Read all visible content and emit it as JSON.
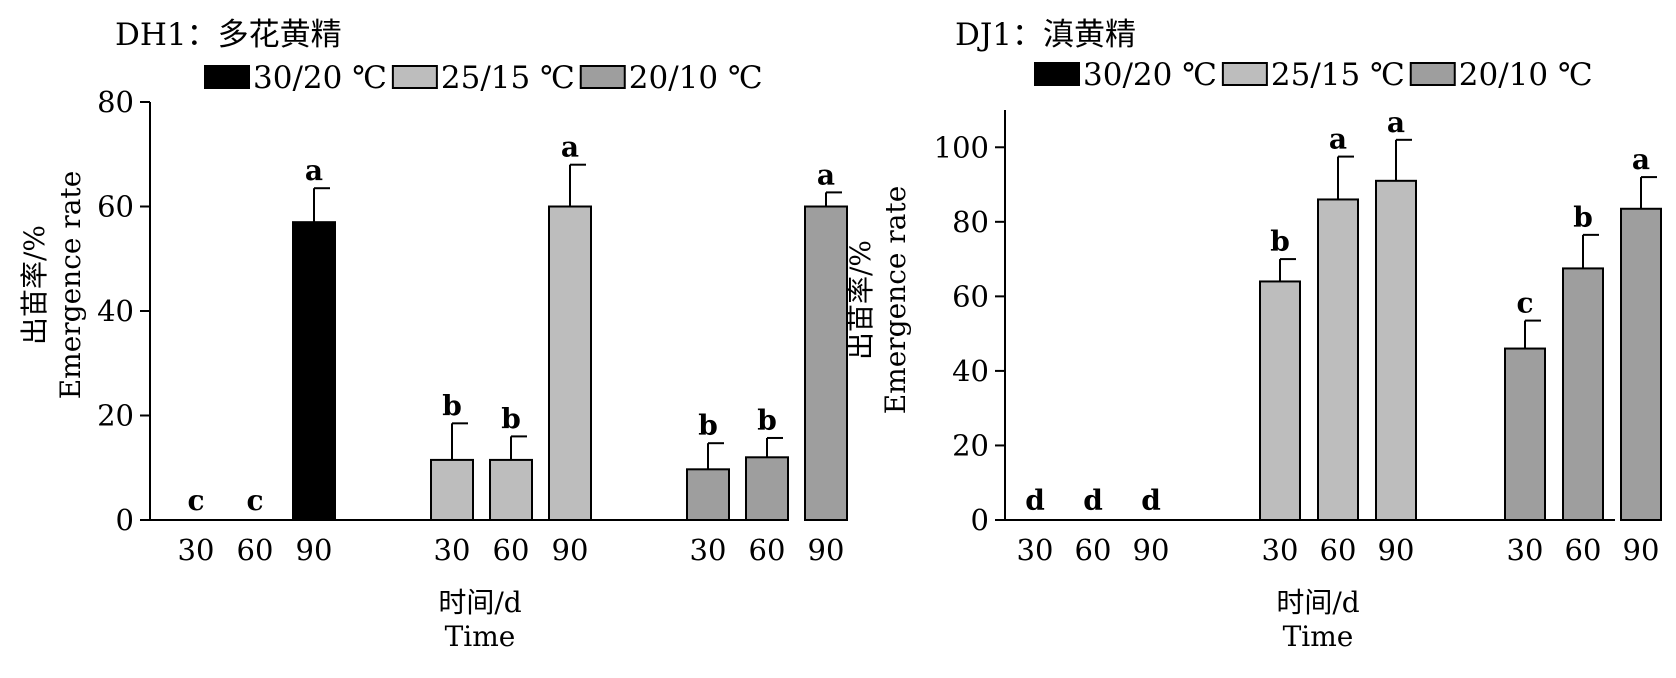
{
  "chart_data": [
    {
      "type": "bar",
      "title": "DH1：多花黄精",
      "xlabel": "时间/d",
      "xlabel_en": "Time",
      "ylabel": "出苗率/%",
      "ylabel_en": "Emergence rate",
      "ylim": [
        0,
        80
      ],
      "yticks": [
        0,
        20,
        40,
        60,
        80
      ],
      "legend_position": "top",
      "categories": [
        "30",
        "60",
        "90"
      ],
      "series": [
        {
          "name": "30/20 ℃",
          "color": "#000000",
          "values": [
            0,
            0,
            57
          ],
          "errors": [
            0,
            0,
            6.5
          ],
          "letters": [
            "c",
            "c",
            "a"
          ]
        },
        {
          "name": "25/15 ℃",
          "color": "#bdbdbd",
          "values": [
            11.5,
            11.5,
            60
          ],
          "errors": [
            7,
            4.5,
            8
          ],
          "letters": [
            "b",
            "b",
            "a"
          ]
        },
        {
          "name": "20/10 ℃",
          "color": "#9e9e9e",
          "values": [
            9.7,
            12,
            60
          ],
          "errors": [
            5,
            3.7,
            2.7
          ],
          "letters": [
            "b",
            "b",
            "a"
          ]
        }
      ]
    },
    {
      "type": "bar",
      "title": "DJ1：滇黄精",
      "xlabel": "时间/d",
      "xlabel_en": "Time",
      "ylabel": "出苗率/%",
      "ylabel_en": "Emergence rate",
      "ylim": [
        0,
        110
      ],
      "yticks": [
        0,
        20,
        40,
        60,
        80,
        100
      ],
      "legend_position": "top",
      "categories": [
        "30",
        "60",
        "90"
      ],
      "series": [
        {
          "name": "30/20 ℃",
          "color": "#000000",
          "values": [
            0,
            0,
            0
          ],
          "errors": [
            0,
            0,
            0
          ],
          "letters": [
            "d",
            "d",
            "d"
          ]
        },
        {
          "name": "25/15 ℃",
          "color": "#bdbdbd",
          "values": [
            64,
            86,
            91
          ],
          "errors": [
            6,
            11.5,
            11
          ],
          "letters": [
            "b",
            "a",
            "a"
          ]
        },
        {
          "name": "20/10 ℃",
          "color": "#9e9e9e",
          "values": [
            46,
            67.5,
            83.5
          ],
          "errors": [
            7.5,
            9,
            8.5
          ],
          "letters": [
            "c",
            "b",
            "a"
          ]
        }
      ]
    }
  ]
}
